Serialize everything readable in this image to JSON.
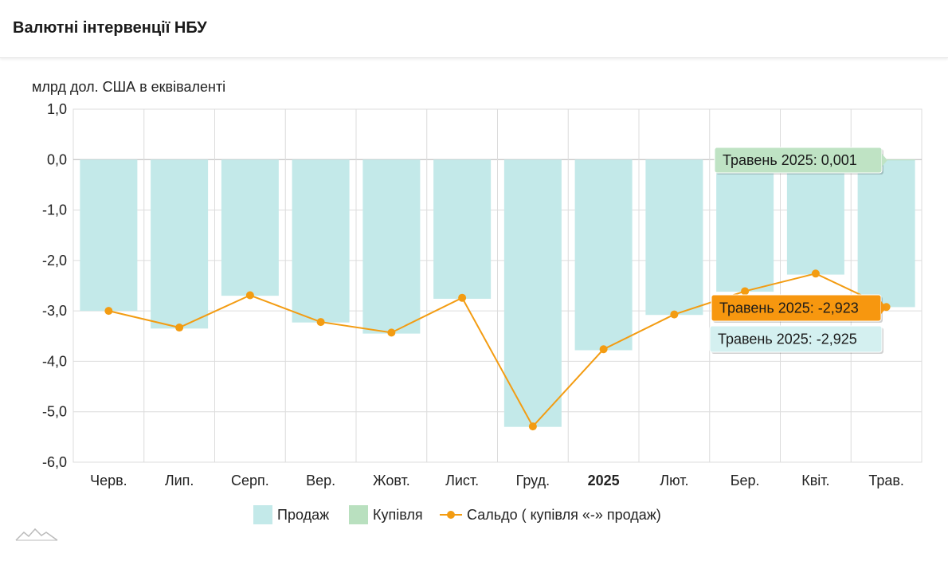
{
  "page": {
    "title": "Валютні інтервенції НБУ"
  },
  "colors": {
    "sale_bar": "#c3e9e9",
    "purchase_bar": "#b9e0bf",
    "balance_line": "#f39c12",
    "grid": "#dcdcdc",
    "tooltip_purchase_bg": "#bfe3c4",
    "tooltip_balance_bg": "#f7970f",
    "tooltip_sale_bg": "#d4f0f0"
  },
  "legend": {
    "sale": "Продаж",
    "purchase": "Купівля",
    "balance": "Сальдо ( купівля «-» продаж)"
  },
  "tooltips": {
    "purchase": "Травень 2025: 0,001",
    "balance": "Травень 2025: -2,923",
    "sale": "Травень 2025: -2,925"
  },
  "chart_data": {
    "type": "bar",
    "ylabel": "млрд дол. США в еквіваленті",
    "ylim": [
      -6,
      1
    ],
    "yticks": [
      1,
      0,
      -1,
      -2,
      -3,
      -4,
      -5,
      -6
    ],
    "ytick_labels": [
      "1,0",
      "0,0",
      "-1,0",
      "-2,0",
      "-3,0",
      "-4,0",
      "-5,0",
      "-6,0"
    ],
    "categories": [
      "Черв.",
      "Лип.",
      "Серп.",
      "Вер.",
      "Жовт.",
      "Лист.",
      "Груд.",
      "2025",
      "Лют.",
      "Бер.",
      "Квіт.",
      "Трав."
    ],
    "bold_categories": [
      "2025"
    ],
    "grid": true,
    "legend_position": "bottom",
    "series": [
      {
        "name": "Продаж",
        "type": "bar",
        "values": [
          -3.0,
          -3.35,
          -2.7,
          -3.23,
          -3.45,
          -2.76,
          -5.3,
          -3.78,
          -3.08,
          -2.62,
          -2.28,
          -2.925
        ]
      },
      {
        "name": "Купівля",
        "type": "bar",
        "values": [
          0,
          0,
          0,
          0,
          0,
          0,
          0,
          0,
          0,
          0,
          0,
          0.001
        ]
      },
      {
        "name": "Сальдо ( купівля «-» продаж)",
        "type": "line",
        "values": [
          -3.0,
          -3.33,
          -2.69,
          -3.22,
          -3.43,
          -2.74,
          -5.29,
          -3.76,
          -3.07,
          -2.61,
          -2.26,
          -2.923
        ]
      }
    ]
  }
}
